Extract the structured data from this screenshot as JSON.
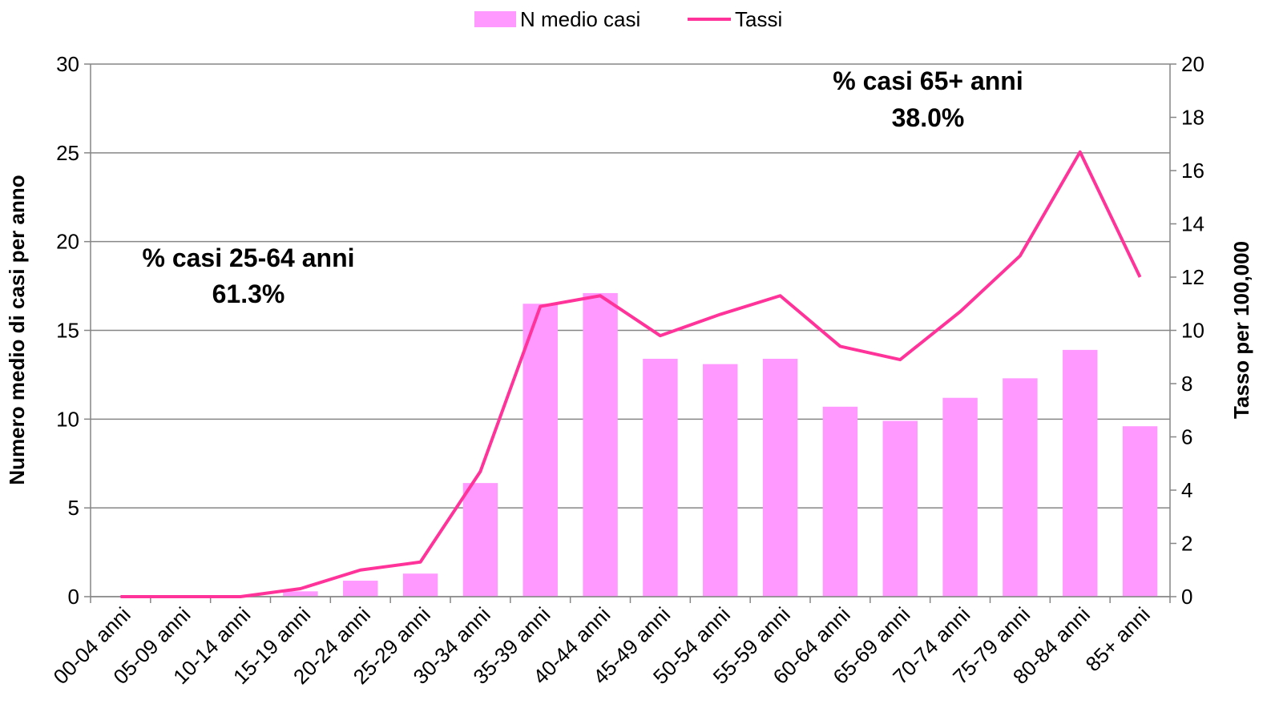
{
  "chart_data": {
    "type": "bar-line",
    "categories": [
      "00-04 anni",
      "05-09 anni",
      "10-14 anni",
      "15-19 anni",
      "20-24 anni",
      "25-29 anni",
      "30-34 anni",
      "35-39 anni",
      "40-44 anni",
      "45-49 anni",
      "50-54 anni",
      "55-59 anni",
      "60-64 anni",
      "65-69 anni",
      "70-74 anni",
      "75-79 anni",
      "80-84 anni",
      "85+ anni"
    ],
    "series": [
      {
        "name": "N medio casi",
        "type": "bar",
        "color": "#ff99ff",
        "values": [
          0,
          0,
          0,
          0.3,
          0.9,
          1.3,
          6.4,
          16.5,
          17.1,
          13.4,
          13.1,
          13.4,
          10.7,
          9.9,
          11.2,
          12.3,
          13.9,
          9.6
        ]
      },
      {
        "name": "Tassi",
        "type": "line",
        "axis": "y2",
        "color": "#ff3399",
        "values": [
          0,
          0,
          0,
          0.3,
          1.0,
          1.3,
          4.7,
          10.9,
          11.3,
          9.8,
          10.6,
          11.3,
          9.4,
          8.9,
          10.7,
          12.8,
          16.7,
          12.0
        ]
      }
    ],
    "ylabel": "Numero medio di casi per anno",
    "y2label": "Tasso per 100,000",
    "ylim": [
      0,
      30
    ],
    "yticks": [
      0,
      5,
      10,
      15,
      20,
      25,
      30
    ],
    "y2lim": [
      0,
      20
    ],
    "y2ticks": [
      0,
      2,
      4,
      6,
      8,
      10,
      12,
      14,
      16,
      18,
      20
    ],
    "grid": true,
    "legend": "top",
    "annotations": [
      [
        "% casi 25-64 anni",
        "61.3%"
      ],
      [
        "% casi 65+ anni",
        "38.0%"
      ]
    ]
  }
}
